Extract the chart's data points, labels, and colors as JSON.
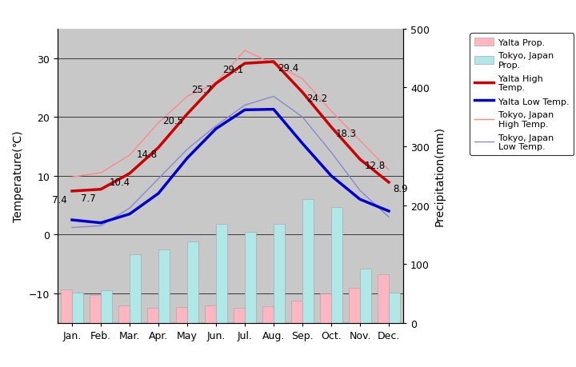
{
  "months": [
    "Jan.",
    "Feb.",
    "Mar.",
    "Apr.",
    "May",
    "Jun.",
    "Jul.",
    "Aug.",
    "Sep.",
    "Oct.",
    "Nov.",
    "Dec."
  ],
  "yalta_high": [
    7.4,
    7.7,
    10.4,
    14.8,
    20.5,
    25.7,
    29.1,
    29.4,
    24.2,
    18.3,
    12.8,
    8.9
  ],
  "yalta_low": [
    2.5,
    2.0,
    3.5,
    7.0,
    13.0,
    18.0,
    21.2,
    21.3,
    15.5,
    10.0,
    6.0,
    4.0
  ],
  "tokyo_high": [
    9.8,
    10.5,
    13.5,
    19.0,
    23.5,
    25.8,
    31.3,
    29.0,
    26.5,
    21.0,
    16.0,
    11.0
  ],
  "tokyo_low": [
    1.2,
    1.5,
    4.5,
    9.5,
    14.5,
    18.5,
    22.0,
    23.5,
    20.0,
    14.0,
    7.5,
    3.0
  ],
  "yalta_precip": [
    57,
    47,
    30,
    25,
    27,
    30,
    25,
    28,
    38,
    50,
    60,
    82
  ],
  "tokyo_precip": [
    52,
    56,
    117,
    125,
    138,
    168,
    154,
    168,
    210,
    197,
    92,
    51
  ],
  "temp_min": -15,
  "temp_max": 35,
  "precip_min": 0,
  "precip_max": 500,
  "bg_color": "#c8c8c8",
  "yalta_high_color": "#cc0000",
  "yalta_low_color": "#0000cc",
  "tokyo_high_color": "#ff8888",
  "tokyo_low_color": "#8888cc",
  "yalta_precip_color": "#ffb6c1",
  "tokyo_precip_color": "#b0e8e8",
  "ylabel_left": "Temperature(℃)",
  "ylabel_right": "Precipitation(mm)",
  "tick_label_fontsize": 9,
  "axis_label_fontsize": 10,
  "yalta_high_annotations": [
    7.4,
    7.7,
    10.4,
    14.8,
    20.5,
    25.7,
    29.1,
    29.4,
    24.2,
    18.3,
    12.8,
    8.9
  ]
}
